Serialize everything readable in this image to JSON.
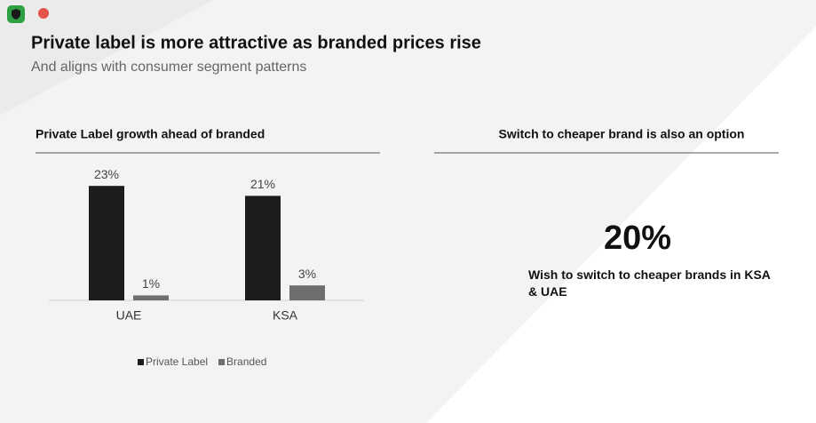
{
  "header": {
    "title": "Private label is more attractive as branded prices rise",
    "subtitle": "And aligns with consumer segment patterns"
  },
  "chart_data": {
    "type": "bar",
    "title": "Private Label growth ahead of branded",
    "categories": [
      "UAE",
      "KSA"
    ],
    "series": [
      {
        "name": "Private Label",
        "color": "#1c1c1c",
        "values": [
          23,
          21
        ],
        "value_labels": [
          "23%",
          "21%"
        ]
      },
      {
        "name": "Branded",
        "color": "#6e6e6e",
        "values": [
          1,
          3
        ],
        "value_labels": [
          "1%",
          "3%"
        ]
      }
    ],
    "ylim": [
      0,
      25
    ],
    "legend": "bottom"
  },
  "stat_panel": {
    "title": "Switch to cheaper brand is also an option",
    "value": "20%",
    "caption": "Wish to switch to cheaper brands in KSA & UAE"
  }
}
